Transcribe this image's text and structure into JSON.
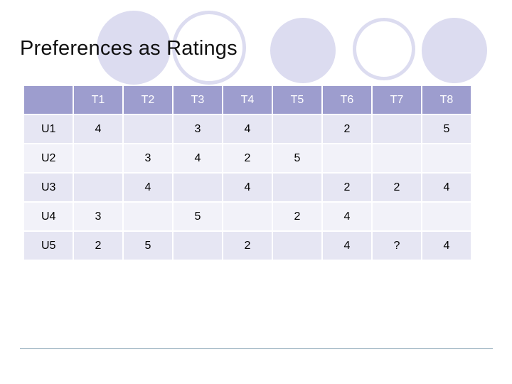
{
  "slide": {
    "title": "Preferences as Ratings"
  },
  "table": {
    "corner": "",
    "columns": [
      "T1",
      "T2",
      "T3",
      "T4",
      "T5",
      "T6",
      "T7",
      "T8"
    ],
    "rows": [
      {
        "user": "U1",
        "cells": [
          "4",
          "",
          "3",
          "4",
          "",
          "2",
          "",
          "5"
        ]
      },
      {
        "user": "U2",
        "cells": [
          "",
          "3",
          "4",
          "2",
          "5",
          "",
          "",
          ""
        ]
      },
      {
        "user": "U3",
        "cells": [
          "",
          "4",
          "",
          "4",
          "",
          "2",
          "2",
          "4"
        ]
      },
      {
        "user": "U4",
        "cells": [
          "3",
          "",
          "5",
          "",
          "2",
          "4",
          "",
          ""
        ]
      },
      {
        "user": "U5",
        "cells": [
          "2",
          "5",
          "",
          "2",
          "",
          "4",
          "?",
          "4"
        ]
      }
    ]
  },
  "colors": {
    "header_bg": "#9d9dce",
    "row_bg": "#e6e6f3",
    "row_alt_bg": "#f2f2f9",
    "decoration": "#dcdcf0",
    "rule": "#7f9db0"
  }
}
